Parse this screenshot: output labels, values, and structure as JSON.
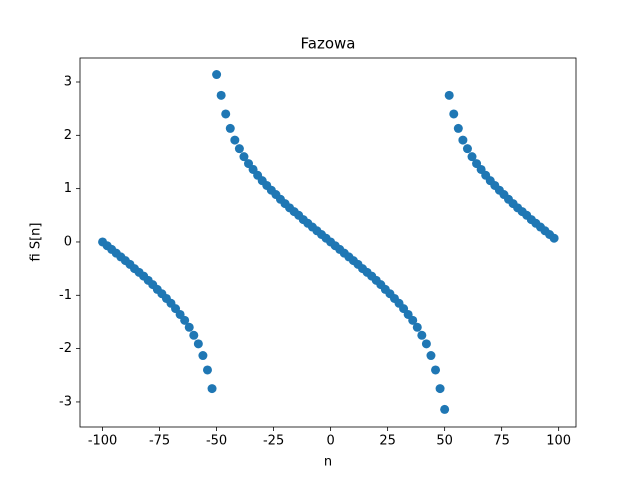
{
  "chart_data": {
    "type": "scatter",
    "title": "Fazowa",
    "x_label": "n",
    "y_label": "fi S[n]",
    "x": [
      -100,
      -98,
      -96,
      -94,
      -92,
      -90,
      -88,
      -86,
      -84,
      -82,
      -80,
      -78,
      -76,
      -74,
      -72,
      -70,
      -68,
      -66,
      -64,
      -62,
      -60,
      -58,
      -56,
      -54,
      -52,
      -50,
      -48,
      -46,
      -44,
      -42,
      -40,
      -38,
      -36,
      -34,
      -32,
      -30,
      -28,
      -26,
      -24,
      -22,
      -20,
      -18,
      -16,
      -14,
      -12,
      -10,
      -8,
      -6,
      -4,
      -2,
      0,
      2,
      4,
      6,
      8,
      10,
      12,
      14,
      16,
      18,
      20,
      22,
      24,
      26,
      28,
      30,
      32,
      34,
      36,
      38,
      40,
      42,
      44,
      46,
      48,
      50,
      52,
      54,
      56,
      58,
      60,
      62,
      64,
      66,
      68,
      70,
      72,
      74,
      76,
      78,
      80,
      82,
      84,
      86,
      88,
      90,
      92,
      94,
      96,
      98
    ],
    "values": [
      0,
      -0.07,
      -0.14,
      -0.21,
      -0.28,
      -0.35,
      -0.42,
      -0.5,
      -0.57,
      -0.64,
      -0.72,
      -0.8,
      -0.89,
      -0.97,
      -1.06,
      -1.15,
      -1.25,
      -1.36,
      -1.47,
      -1.6,
      -1.75,
      -1.91,
      -2.13,
      -2.4,
      -2.75,
      3.14,
      2.75,
      2.4,
      2.13,
      1.91,
      1.75,
      1.6,
      1.47,
      1.36,
      1.25,
      1.15,
      1.06,
      0.97,
      0.89,
      0.8,
      0.72,
      0.64,
      0.57,
      0.5,
      0.42,
      0.35,
      0.28,
      0.21,
      0.14,
      0.07,
      0,
      -0.07,
      -0.14,
      -0.21,
      -0.28,
      -0.35,
      -0.42,
      -0.5,
      -0.57,
      -0.64,
      -0.72,
      -0.8,
      -0.89,
      -0.97,
      -1.06,
      -1.15,
      -1.25,
      -1.36,
      -1.47,
      -1.6,
      -1.75,
      -1.91,
      -2.13,
      -2.4,
      -2.75,
      -3.14,
      2.75,
      2.4,
      2.13,
      1.91,
      1.75,
      1.6,
      1.47,
      1.36,
      1.25,
      1.15,
      1.06,
      0.97,
      0.89,
      0.8,
      0.72,
      0.64,
      0.57,
      0.5,
      0.42,
      0.35,
      0.28,
      0.21,
      0.14,
      0.07
    ],
    "color": "#1f77b4",
    "xlim": [
      -109.9,
      107.6
    ],
    "ylim": [
      -3.47,
      3.45
    ],
    "xticks": [
      -100,
      -75,
      -50,
      -25,
      0,
      25,
      50,
      75,
      100
    ],
    "yticks": [
      -3,
      -2,
      -1,
      0,
      1,
      2,
      3
    ]
  }
}
